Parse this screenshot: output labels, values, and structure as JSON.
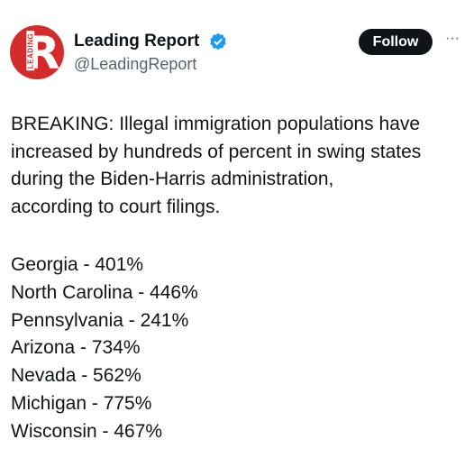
{
  "avatar": {
    "letter": "R",
    "text": "LEADING"
  },
  "header": {
    "name": "Leading Report",
    "handle": "@LeadingReport",
    "follow": "Follow",
    "more": "···"
  },
  "body": [
    "BREAKING: Illegal immigration populations have",
    "increased by hundreds of percent in swing states",
    "during the Biden-Harris administration,",
    "according to court filings."
  ],
  "list": [
    "Georgia - 401%",
    "North Carolina - 446%",
    "Pennsylvania - 241%",
    "Arizona - 734%",
    "Nevada - 562%",
    "Michigan - 775%",
    "Wisconsin - 467%"
  ]
}
